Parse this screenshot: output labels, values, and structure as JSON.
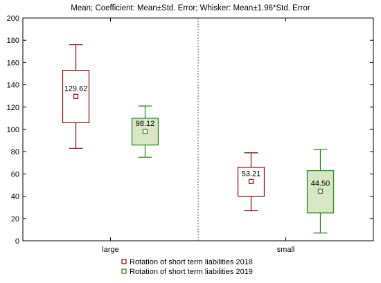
{
  "chart_data": {
    "type": "box",
    "title": "Mean; Coefficient: Mean±Std. Error; Whisker: Mean±1.96*Std. Error",
    "categories": [
      "large",
      "small"
    ],
    "ylim": [
      0,
      200
    ],
    "yticks": [
      0,
      20,
      40,
      60,
      80,
      100,
      120,
      140,
      160,
      180,
      200
    ],
    "grid": false,
    "legend_position": "bottom",
    "series": [
      {
        "name": "Rotation of short term liabilities 2018",
        "stroke": "#8b1a1a",
        "fill": "#ffffff",
        "boxes": [
          {
            "category": "large",
            "mean": 129.62,
            "mean_label": "129.62",
            "box_low": 106,
            "box_high": 153,
            "whisker_low": 83,
            "whisker_high": 176
          },
          {
            "category": "small",
            "mean": 53.21,
            "mean_label": "53.21",
            "box_low": 40,
            "box_high": 66,
            "whisker_low": 27,
            "whisker_high": 79
          }
        ]
      },
      {
        "name": "Rotation of short term liabilities 2019",
        "stroke": "#2e8b1e",
        "fill": "#d9e6c4",
        "boxes": [
          {
            "category": "large",
            "mean": 98.12,
            "mean_label": "98.12",
            "box_low": 86,
            "box_high": 110,
            "whisker_low": 75,
            "whisker_high": 121
          },
          {
            "category": "small",
            "mean": 44.5,
            "mean_label": "44.50",
            "box_low": 25,
            "box_high": 63,
            "whisker_low": 7,
            "whisker_high": 82
          }
        ]
      }
    ]
  }
}
